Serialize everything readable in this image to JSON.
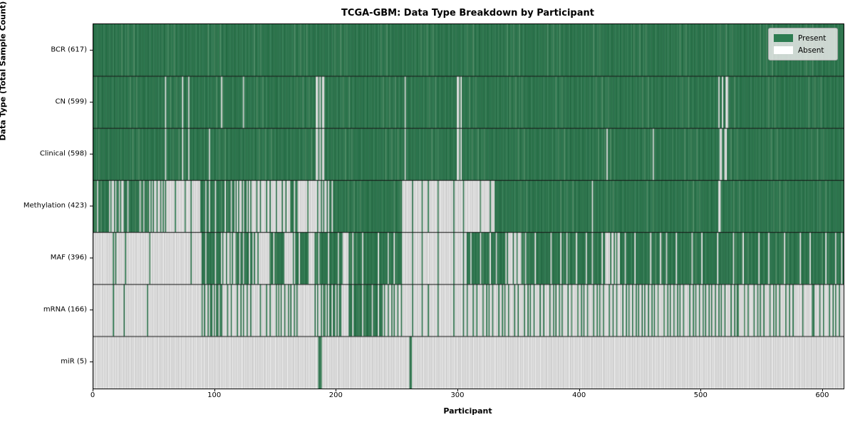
{
  "chart_data": {
    "type": "heatmap",
    "title": "TCGA-GBM: Data Type Breakdown by Participant",
    "xlabel": "Participant",
    "ylabel": "Data Type (Total Sample Count)",
    "x_ticks": [
      0,
      100,
      200,
      300,
      400,
      500,
      600
    ],
    "n_participants": 617,
    "xlim": [
      0,
      617
    ],
    "legend": [
      {
        "label": "Present",
        "color": "#2d7c51"
      },
      {
        "label": "Absent",
        "color": "#ffffff"
      }
    ],
    "legend_position": "upper right",
    "grid": false,
    "rows": [
      {
        "label": "BCR (617)",
        "data_type": "BCR",
        "count": 617,
        "mode": "full"
      },
      {
        "label": "CN (599)",
        "data_type": "CN",
        "count": 599,
        "mode": "absent_list",
        "absent": [
          59,
          73,
          78,
          105,
          123,
          183,
          184,
          186,
          188,
          189,
          256,
          299,
          300,
          302,
          514,
          517,
          520,
          521
        ]
      },
      {
        "label": "Clinical (598)",
        "data_type": "Clinical",
        "count": 598,
        "mode": "absent_list",
        "absent": [
          59,
          73,
          78,
          95,
          183,
          184,
          186,
          188,
          189,
          256,
          299,
          300,
          302,
          422,
          460,
          515,
          516,
          519,
          520
        ]
      },
      {
        "label": "Methylation (423)",
        "data_type": "Methylation",
        "count": 423,
        "mode": "segments",
        "segments": [
          [
            0,
            12,
            0.95
          ],
          [
            12,
            25,
            0.5
          ],
          [
            25,
            35,
            0.95
          ],
          [
            35,
            47,
            0.75
          ],
          [
            47,
            59,
            0.4
          ],
          [
            59,
            89,
            0.15
          ],
          [
            89,
            117,
            0.8
          ],
          [
            117,
            129,
            0.5
          ],
          [
            129,
            162,
            0.25
          ],
          [
            162,
            168,
            0.9
          ],
          [
            168,
            187,
            0.08
          ],
          [
            187,
            197,
            0.5
          ],
          [
            197,
            254,
            1.0
          ],
          [
            254,
            310,
            0.12
          ],
          [
            310,
            330,
            0.1
          ],
          [
            330,
            410,
            1.0
          ],
          [
            410,
            411,
            0.0
          ],
          [
            411,
            514,
            1.0
          ],
          [
            514,
            516,
            0.0
          ],
          [
            516,
            617,
            1.0
          ]
        ]
      },
      {
        "label": "MAF (396)",
        "data_type": "MAF",
        "count": 396,
        "mode": "segments",
        "segments": [
          [
            0,
            18,
            0.06
          ],
          [
            18,
            30,
            0.15
          ],
          [
            30,
            89,
            0.04
          ],
          [
            89,
            104,
            0.9
          ],
          [
            104,
            117,
            0.45
          ],
          [
            117,
            130,
            0.8
          ],
          [
            130,
            137,
            0.5
          ],
          [
            137,
            145,
            0.1
          ],
          [
            145,
            156,
            0.9
          ],
          [
            156,
            166,
            0.15
          ],
          [
            166,
            176,
            0.85
          ],
          [
            176,
            182,
            0.2
          ],
          [
            182,
            205,
            0.85
          ],
          [
            205,
            210,
            0.1
          ],
          [
            210,
            254,
            0.9
          ],
          [
            254,
            307,
            0.1
          ],
          [
            307,
            340,
            0.85
          ],
          [
            340,
            352,
            0.25
          ],
          [
            352,
            420,
            0.88
          ],
          [
            420,
            434,
            0.35
          ],
          [
            434,
            617,
            0.9
          ]
        ]
      },
      {
        "label": "mRNA (166)",
        "data_type": "mRNA",
        "count": 166,
        "mode": "segments",
        "segments": [
          [
            0,
            17,
            0.05
          ],
          [
            17,
            28,
            0.1
          ],
          [
            28,
            89,
            0.02
          ],
          [
            89,
            105,
            0.6
          ],
          [
            105,
            129,
            0.3
          ],
          [
            129,
            152,
            0.2
          ],
          [
            152,
            168,
            0.45
          ],
          [
            168,
            182,
            0.05
          ],
          [
            182,
            205,
            0.6
          ],
          [
            205,
            210,
            0.1
          ],
          [
            210,
            237,
            0.85
          ],
          [
            237,
            254,
            0.4
          ],
          [
            254,
            307,
            0.12
          ],
          [
            307,
            385,
            0.3
          ],
          [
            385,
            430,
            0.3
          ],
          [
            430,
            530,
            0.35
          ],
          [
            530,
            575,
            0.3
          ],
          [
            575,
            592,
            0.15
          ],
          [
            592,
            617,
            0.3
          ]
        ]
      },
      {
        "label": "miR (5)",
        "data_type": "miR",
        "count": 5,
        "mode": "present_list",
        "present": [
          185,
          186,
          187,
          260,
          261
        ]
      }
    ],
    "colors": {
      "present_base": "#2d7c51",
      "present_variants": [
        "#2a7a4e",
        "#318155",
        "#3a8a5e",
        "#55996f"
      ],
      "present_edge": "rgba(15,50,30,0.55)",
      "absent_fill": "#ffffff",
      "absent_fill_alt": "#f4f4f4",
      "absent_edge": "rgba(140,140,140,0.9)",
      "row_divider": "#111111",
      "spine": "#000000"
    }
  }
}
